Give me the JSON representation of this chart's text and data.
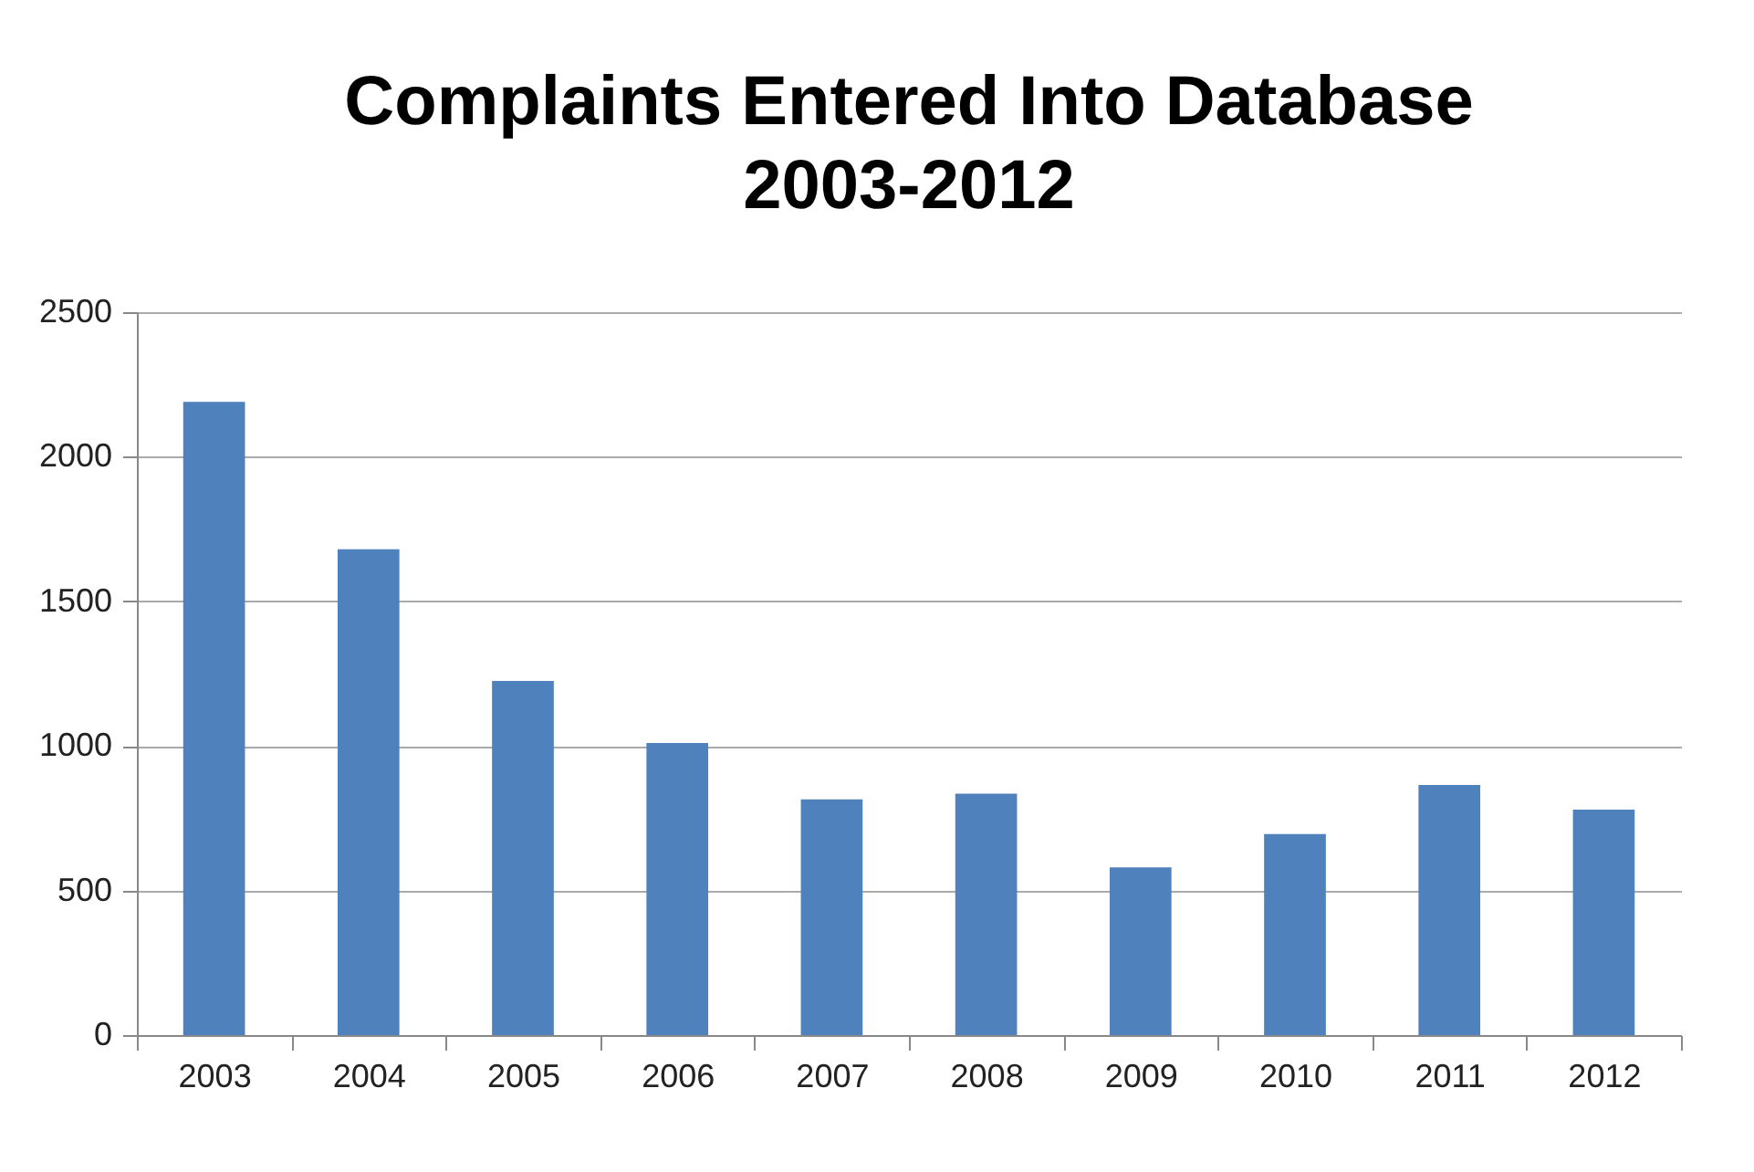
{
  "chart_data": {
    "type": "bar",
    "title": "Complaints Entered Into Database",
    "subtitle": "2003-2012",
    "categories": [
      "2003",
      "2004",
      "2005",
      "2006",
      "2007",
      "2008",
      "2009",
      "2010",
      "2011",
      "2012"
    ],
    "values": [
      2190,
      1680,
      1225,
      1010,
      815,
      835,
      580,
      695,
      865,
      780
    ],
    "color": "#4f81bd",
    "ylim": [
      0,
      2500
    ],
    "yticks": [
      0,
      500,
      1000,
      1500,
      2000,
      2500
    ],
    "grid": "y"
  }
}
